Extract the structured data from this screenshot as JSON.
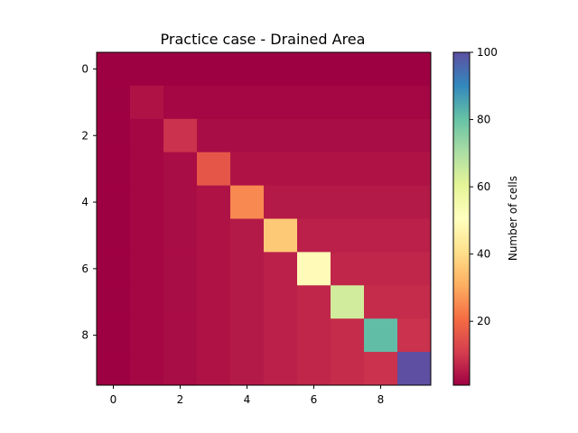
{
  "chart_data": {
    "type": "heatmap",
    "title": "Practice case - Drained Area",
    "xlabel": "",
    "ylabel": "",
    "x_ticks": [
      0,
      2,
      4,
      6,
      8
    ],
    "y_ticks": [
      0,
      2,
      4,
      6,
      8
    ],
    "rows": 10,
    "cols": 10,
    "colormap": "Spectral",
    "colorbar": {
      "label": "Number of cells",
      "min": 1,
      "max": 100,
      "ticks": [
        20,
        40,
        60,
        80,
        100
      ]
    },
    "values": [
      [
        1,
        1,
        1,
        1,
        1,
        1,
        1,
        1,
        1,
        1
      ],
      [
        1,
        4,
        2,
        2,
        2,
        2,
        2,
        2,
        2,
        2
      ],
      [
        1,
        2,
        9,
        3,
        3,
        3,
        3,
        3,
        3,
        3
      ],
      [
        1,
        2,
        3,
        16,
        4,
        4,
        4,
        4,
        4,
        4
      ],
      [
        1,
        2,
        3,
        4,
        25,
        5,
        5,
        5,
        5,
        5
      ],
      [
        1,
        2,
        3,
        4,
        5,
        36,
        6,
        6,
        6,
        6
      ],
      [
        1,
        2,
        3,
        4,
        5,
        6,
        49,
        7,
        7,
        7
      ],
      [
        1,
        2,
        3,
        4,
        5,
        6,
        7,
        64,
        8,
        8
      ],
      [
        1,
        2,
        3,
        4,
        5,
        6,
        7,
        8,
        81,
        9
      ],
      [
        1,
        2,
        3,
        4,
        5,
        6,
        7,
        8,
        9,
        100
      ]
    ]
  }
}
